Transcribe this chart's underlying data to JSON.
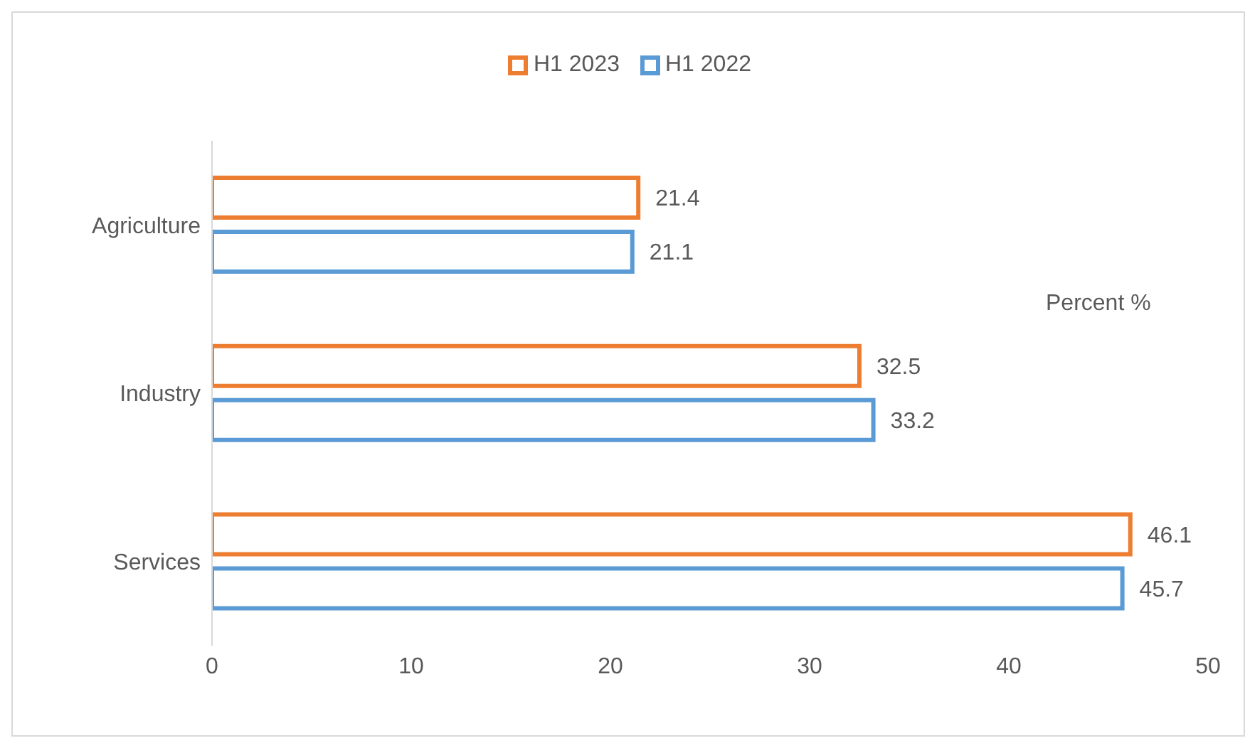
{
  "chart_data": {
    "type": "bar",
    "orientation": "horizontal",
    "categories": [
      "Agriculture",
      "Industry",
      "Services"
    ],
    "series": [
      {
        "name": "H1 2023",
        "color": "#ed7d31",
        "values": [
          21.4,
          32.5,
          46.1
        ]
      },
      {
        "name": "H1 2022",
        "color": "#5b9bd5",
        "values": [
          21.1,
          33.2,
          45.7
        ]
      }
    ],
    "xlim": [
      0,
      50
    ],
    "xticks": [
      0,
      10,
      20,
      30,
      40,
      50
    ],
    "data_labels": true,
    "legend": "top",
    "annotations": [
      "Percent %"
    ]
  }
}
